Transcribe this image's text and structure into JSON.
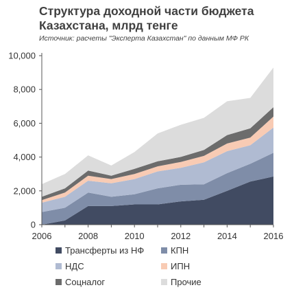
{
  "title": "Структура доходной части бюджета Казахстана, млрд тенге",
  "subtitle": "Источник: расчеты \"Эксперта Казахстан\" по данным МФ РК",
  "chart_data": {
    "type": "area",
    "stacked": true,
    "title": "Структура доходной части бюджета Казахстана, млрд тенге",
    "subtitle": "Источник: расчеты \"Эксперта Казахстан\" по данным МФ РК",
    "x": [
      2006,
      2007,
      2008,
      2009,
      2010,
      2011,
      2012,
      2013,
      2014,
      2015,
      2016
    ],
    "x_ticks": [
      "2006",
      "2008",
      "2010",
      "2012",
      "2014",
      "2016"
    ],
    "ylim": [
      0,
      10000
    ],
    "y_ticks": [
      "0",
      "2,000",
      "4,000",
      "6,000",
      "8,000",
      "10,000"
    ],
    "grid": false,
    "legend_position": "bottom",
    "series": [
      {
        "name": "Трансферты из НФ",
        "color": "#414b62",
        "values": [
          0,
          250,
          1100,
          1100,
          1200,
          1200,
          1380,
          1470,
          2000,
          2550,
          2850
        ]
      },
      {
        "name": "КПН",
        "color": "#7f8da8",
        "values": [
          750,
          750,
          800,
          550,
          600,
          950,
          980,
          920,
          1050,
          1050,
          1400
        ]
      },
      {
        "name": "НДС",
        "color": "#b0bbd2",
        "values": [
          550,
          650,
          700,
          800,
          900,
          1000,
          1000,
          1300,
          1300,
          1100,
          1500
        ]
      },
      {
        "name": "ИПН",
        "color": "#f8cbb4",
        "values": [
          150,
          250,
          300,
          250,
          300,
          300,
          350,
          380,
          450,
          450,
          650
        ]
      },
      {
        "name": "Соцналог",
        "color": "#6c6c6c",
        "values": [
          200,
          250,
          300,
          200,
          300,
          300,
          300,
          350,
          500,
          550,
          550
        ]
      },
      {
        "name": "Прочие",
        "color": "#dcdcdc",
        "values": [
          750,
          850,
          900,
          600,
          1000,
          1650,
          1900,
          1900,
          2000,
          1800,
          2350
        ]
      }
    ]
  }
}
